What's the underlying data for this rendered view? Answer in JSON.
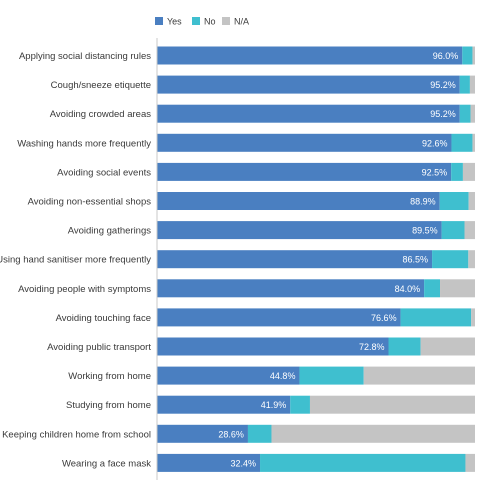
{
  "colors": {
    "yes": "#4a7fc1",
    "no": "#3fbfcf",
    "na": "#c4c4c4",
    "axis": "#c8c8c8",
    "text": "#3a3a3a"
  },
  "legend": [
    {
      "key": "yes",
      "label": "Yes"
    },
    {
      "key": "no",
      "label": "No"
    },
    {
      "key": "na",
      "label": "N/A"
    }
  ],
  "chart_data": {
    "type": "bar",
    "orientation": "horizontal",
    "stacked": true,
    "xlim": [
      0,
      100
    ],
    "grid": false,
    "legend_position": "top",
    "categories": [
      "Applying social distancing rules",
      "Cough/sneeze etiquette",
      "Avoiding crowded areas",
      "Washing hands more frequently",
      "Avoiding social events",
      "Avoiding non-essential shops",
      "Avoiding gatherings",
      "Using hand sanitiser more frequently",
      "Avoiding people with symptoms",
      "Avoiding touching face",
      "Avoiding public transport",
      "Working from home",
      "Studying from home",
      "Keeping children home from school",
      "Wearing a face mask"
    ],
    "series": [
      {
        "name": "Yes",
        "values": [
          96.0,
          95.2,
          95.2,
          92.6,
          92.5,
          88.9,
          89.5,
          86.5,
          84.0,
          76.6,
          72.8,
          44.8,
          41.9,
          28.6,
          32.4
        ]
      },
      {
        "name": "No",
        "values": [
          3.2,
          3.2,
          3.4,
          6.6,
          3.7,
          9.1,
          7.2,
          11.4,
          5.0,
          22.2,
          10.1,
          20.2,
          6.2,
          7.4,
          64.6
        ]
      },
      {
        "name": "N/A",
        "values": [
          0.8,
          1.6,
          1.4,
          0.8,
          3.8,
          2.0,
          3.3,
          2.1,
          11.0,
          1.2,
          17.1,
          35.0,
          51.9,
          64.0,
          3.0
        ]
      }
    ],
    "data_labels": [
      "96.0%",
      "95.2%",
      "95.2%",
      "92.6%",
      "92.5%",
      "88.9%",
      "89.5%",
      "86.5%",
      "84.0%",
      "76.6%",
      "72.8%",
      "44.8%",
      "41.9%",
      "28.6%",
      "32.4%"
    ]
  }
}
